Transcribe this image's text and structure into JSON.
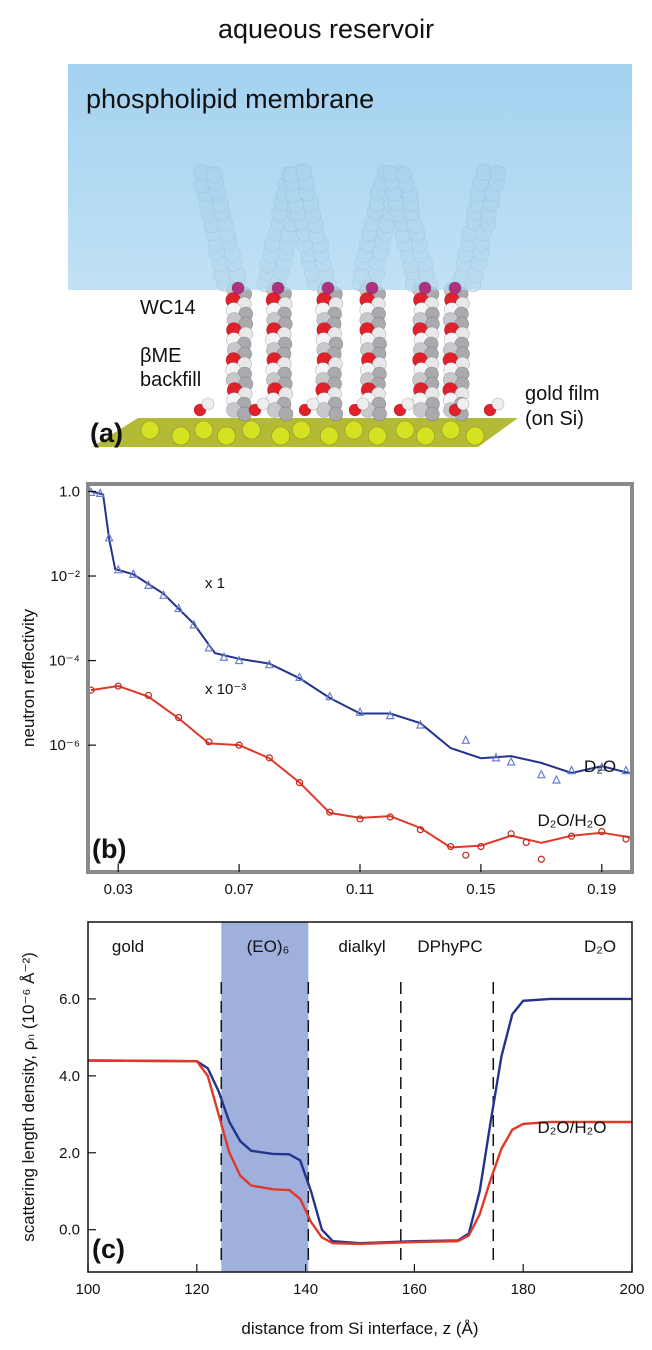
{
  "panel_a": {
    "top_label": "aqueous reservoir",
    "membrane_label": "phospholipid membrane",
    "wc14_label": "WC14",
    "bme_label": "βME",
    "backfill_label": "backfill",
    "gold_label": "gold film",
    "substrate_label": "(on Si)",
    "panel_label": "(a)"
  },
  "chart_data": [
    {
      "type": "scatter",
      "panel_label": "(b)",
      "ylabel": "neutron reflectivity",
      "log_y": true,
      "xlim": [
        0.02,
        0.2
      ],
      "xticks": [
        0.03,
        0.07,
        0.11,
        0.15,
        0.19
      ],
      "ylim": [
        1e-09,
        1.5
      ],
      "yticks": [
        {
          "value": 1,
          "label": "1.0"
        },
        {
          "value": 0.01,
          "label": "10⁻²"
        },
        {
          "value": 0.0001,
          "label": "10⁻⁴"
        },
        {
          "value": 1e-06,
          "label": "10⁻⁶"
        }
      ],
      "annotations": [
        "x 1",
        "x 10⁻³"
      ],
      "series": [
        {
          "name": "D₂O",
          "color": "#24338c",
          "marker_color": "#6b7fd0",
          "x": [
            0.021,
            0.024,
            0.027,
            0.03,
            0.035,
            0.04,
            0.045,
            0.05,
            0.055,
            0.06,
            0.065,
            0.07,
            0.08,
            0.09,
            0.1,
            0.11,
            0.12,
            0.13,
            0.145,
            0.155,
            0.16,
            0.17,
            0.175,
            0.18,
            0.19,
            0.198
          ],
          "values": [
            0.95,
            0.9,
            0.08,
            0.014,
            0.011,
            0.006,
            0.0035,
            0.0017,
            0.0007,
            0.0002,
            0.00012,
            0.0001,
            8e-05,
            4e-05,
            1.4e-05,
            6e-06,
            5e-06,
            3e-06,
            1.3e-06,
            5e-07,
            4e-07,
            2e-07,
            1.5e-07,
            2.5e-07,
            3e-07,
            2.5e-07
          ],
          "fit_x": [
            0.021,
            0.025,
            0.027,
            0.029,
            0.035,
            0.045,
            0.055,
            0.062,
            0.07,
            0.08,
            0.09,
            0.1,
            0.11,
            0.12,
            0.13,
            0.14,
            0.15,
            0.16,
            0.17,
            0.18,
            0.19,
            0.2
          ],
          "fit_values": [
            1.0,
            0.85,
            0.074,
            0.0146,
            0.011,
            0.0038,
            0.00074,
            0.00015,
            0.00011,
            8.5e-05,
            3.8e-05,
            1.3e-05,
            5.6e-06,
            5.6e-06,
            3.3e-06,
            8.5e-07,
            4.9e-07,
            5.5e-07,
            3.8e-07,
            2.2e-07,
            3.2e-07,
            2.1e-07
          ]
        },
        {
          "name": "D₂O/H₂O",
          "color": "#e0392a",
          "marker_color": "#c0281c",
          "x": [
            0.021,
            0.03,
            0.04,
            0.05,
            0.06,
            0.07,
            0.08,
            0.09,
            0.1,
            0.11,
            0.12,
            0.13,
            0.14,
            0.145,
            0.15,
            0.16,
            0.165,
            0.17,
            0.18,
            0.19,
            0.198
          ],
          "values": [
            2e-05,
            2.5e-05,
            1.5e-05,
            4.5e-06,
            1.2e-06,
            1e-06,
            5e-07,
            1.3e-07,
            2.6e-08,
            1.8e-08,
            2e-08,
            1e-08,
            4e-09,
            2.5e-09,
            4e-09,
            8e-09,
            5e-09,
            2e-09,
            7e-09,
            9e-09,
            6e-09
          ],
          "fit_x": [
            0.021,
            0.03,
            0.04,
            0.05,
            0.06,
            0.07,
            0.08,
            0.09,
            0.1,
            0.11,
            0.12,
            0.13,
            0.14,
            0.15,
            0.16,
            0.17,
            0.18,
            0.19,
            0.2
          ],
          "fit_values": [
            2e-05,
            2.5e-05,
            1.4e-05,
            4.3e-06,
            1.1e-06,
            1e-06,
            4.9e-07,
            1.3e-07,
            2.5e-08,
            1.9e-08,
            2.1e-08,
            1.1e-08,
            3.8e-09,
            4.2e-09,
            7.2e-09,
            4.9e-09,
            7.2e-09,
            8.5e-09,
            6.5e-09
          ]
        }
      ]
    },
    {
      "type": "line",
      "panel_label": "(c)",
      "xlabel": "distance from Si interface, z   (Å)",
      "ylabel": "scattering length density, ρₙ  (10⁻⁶ Å⁻²)",
      "xlim": [
        100,
        200
      ],
      "xticks": [
        100,
        120,
        140,
        160,
        180,
        200
      ],
      "ylim": [
        -1.1,
        8.0
      ],
      "yticks": [
        {
          "value": 0,
          "label": "0.0"
        },
        {
          "value": 2,
          "label": "2.0"
        },
        {
          "value": 4,
          "label": "4.0"
        },
        {
          "value": 6,
          "label": "6.0"
        }
      ],
      "shaded_region": [
        124.5,
        140.5
      ],
      "shade_color": "#9fb0dd",
      "dividers": [
        124.5,
        140.5,
        157.5,
        174.5
      ],
      "region_labels": [
        "gold",
        "(EO)₆",
        "dialkyl",
        "DPhyPC"
      ],
      "series": [
        {
          "name": "D₂O",
          "color": "#24338c",
          "x": [
            100,
            120,
            122,
            124,
            126,
            128,
            130,
            134,
            137,
            139,
            141,
            143,
            145,
            150,
            160,
            168,
            170,
            172,
            174,
            176,
            178,
            180,
            185,
            200
          ],
          "values": [
            4.4,
            4.38,
            4.2,
            3.6,
            2.8,
            2.3,
            2.05,
            1.97,
            1.96,
            1.8,
            1.0,
            0.0,
            -0.3,
            -0.35,
            -0.3,
            -0.28,
            -0.1,
            1.0,
            2.8,
            4.5,
            5.6,
            5.95,
            6.0,
            6.0
          ]
        },
        {
          "name": "D₂O/H₂O",
          "color": "#e0392a",
          "x": [
            100,
            120,
            122,
            124,
            126,
            128,
            130,
            134,
            137,
            139,
            141,
            143,
            145,
            150,
            160,
            168,
            170,
            172,
            174,
            176,
            178,
            180,
            185,
            200
          ],
          "values": [
            4.4,
            4.38,
            4.0,
            3.0,
            2.0,
            1.4,
            1.15,
            1.05,
            1.03,
            0.8,
            0.2,
            -0.2,
            -0.35,
            -0.37,
            -0.32,
            -0.3,
            -0.15,
            0.4,
            1.3,
            2.1,
            2.6,
            2.75,
            2.8,
            2.8
          ]
        }
      ]
    }
  ]
}
